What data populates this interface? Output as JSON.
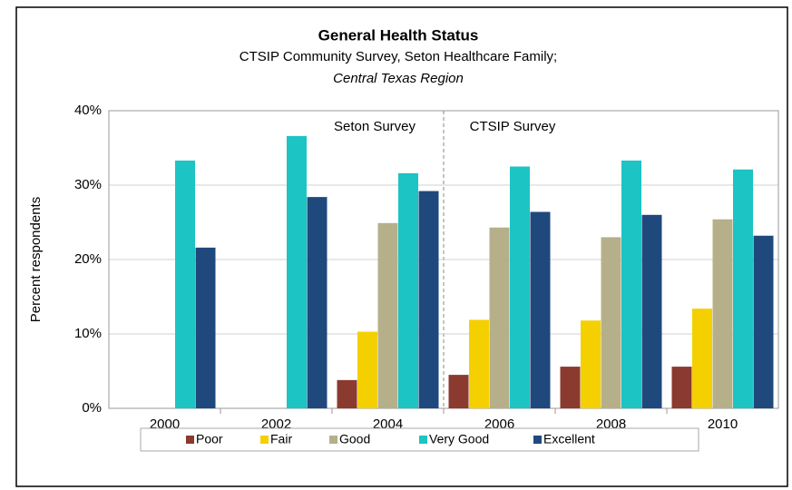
{
  "chart_data": {
    "type": "bar",
    "title": "General Health Status",
    "subtitle": [
      "CTSIP Community Survey, Seton Healthcare Family;",
      "Central Texas Region"
    ],
    "ylabel": "Percent respondents",
    "annotations": [
      "Seton Survey",
      "CTSIP Survey"
    ],
    "categories": [
      "2000",
      "2002",
      "2004",
      "2006",
      "2008",
      "2010"
    ],
    "series": [
      {
        "name": "Poor",
        "color": "#8b3a2f",
        "values": [
          null,
          null,
          3.8,
          4.5,
          5.6,
          5.6
        ]
      },
      {
        "name": "Fair",
        "color": "#f5d000",
        "values": [
          null,
          null,
          10.3,
          11.9,
          11.8,
          13.4
        ]
      },
      {
        "name": "Good",
        "color": "#b5b08a",
        "values": [
          null,
          null,
          24.9,
          24.3,
          23.0,
          25.4
        ]
      },
      {
        "name": "Very Good",
        "color": "#1cc4c4",
        "values": [
          33.3,
          36.6,
          31.6,
          32.5,
          33.3,
          32.1
        ]
      },
      {
        "name": "Excellent",
        "color": "#1f497d",
        "values": [
          21.6,
          28.4,
          29.2,
          26.4,
          26.0,
          23.2
        ]
      }
    ],
    "ylim": [
      0,
      40
    ],
    "yticks": [
      {
        "value": 0,
        "label": "0%"
      },
      {
        "value": 10,
        "label": "10%"
      },
      {
        "value": 20,
        "label": "20%"
      },
      {
        "value": 30,
        "label": "30%"
      },
      {
        "value": 40,
        "label": "40%"
      }
    ],
    "grid": true,
    "legend": "bottom"
  }
}
